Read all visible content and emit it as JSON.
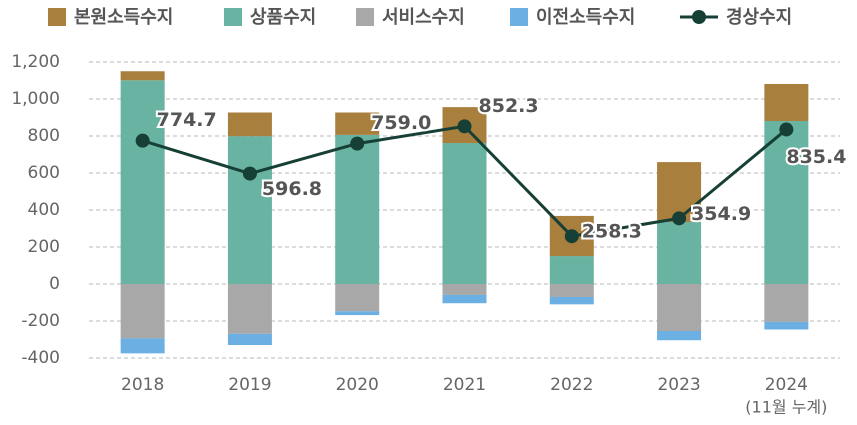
{
  "chart_data": {
    "type": "stacked-bar-line",
    "categories": [
      "2018",
      "2019",
      "2020",
      "2021",
      "2022",
      "2023",
      "2024"
    ],
    "x_note": "(11월 누계)",
    "series": [
      {
        "name": "본원소득수지",
        "color": "#a97f3e",
        "stack": "pos",
        "values": [
          49,
          128,
          121,
          194,
          217,
          324,
          200
        ]
      },
      {
        "name": "상품수지",
        "color": "#68b3a1",
        "stack": "pos",
        "values": [
          1101,
          799,
          806,
          762,
          151,
          335,
          881
        ]
      },
      {
        "name": "서비스수지",
        "color": "#a8a8a8",
        "stack": "neg",
        "values": [
          -294,
          -269,
          -147,
          -59,
          -70,
          -254,
          -205
        ]
      },
      {
        "name": "이전소득수지",
        "color": "#6cb0e3",
        "stack": "neg",
        "values": [
          -81,
          -61,
          -21,
          -45,
          -40,
          -50,
          -41
        ]
      },
      {
        "name": "경상수지",
        "color": "#163f35",
        "type": "line",
        "values": [
          774.7,
          596.8,
          759.0,
          852.3,
          258.3,
          354.9,
          835.4
        ],
        "value_labels": [
          "774.7",
          "596.8",
          "759.0",
          "852.3",
          "258.3",
          "354.9",
          "835.4"
        ]
      }
    ],
    "ylim": [
      -400,
      1200
    ],
    "yticks": [
      -400,
      -200,
      0,
      200,
      400,
      600,
      800,
      1000,
      {
        "value": 1000,
        "label": "1,000"
      },
      {
        "value": 1200,
        "label": "1,200"
      }
    ],
    "grid": true,
    "legend": "top"
  }
}
